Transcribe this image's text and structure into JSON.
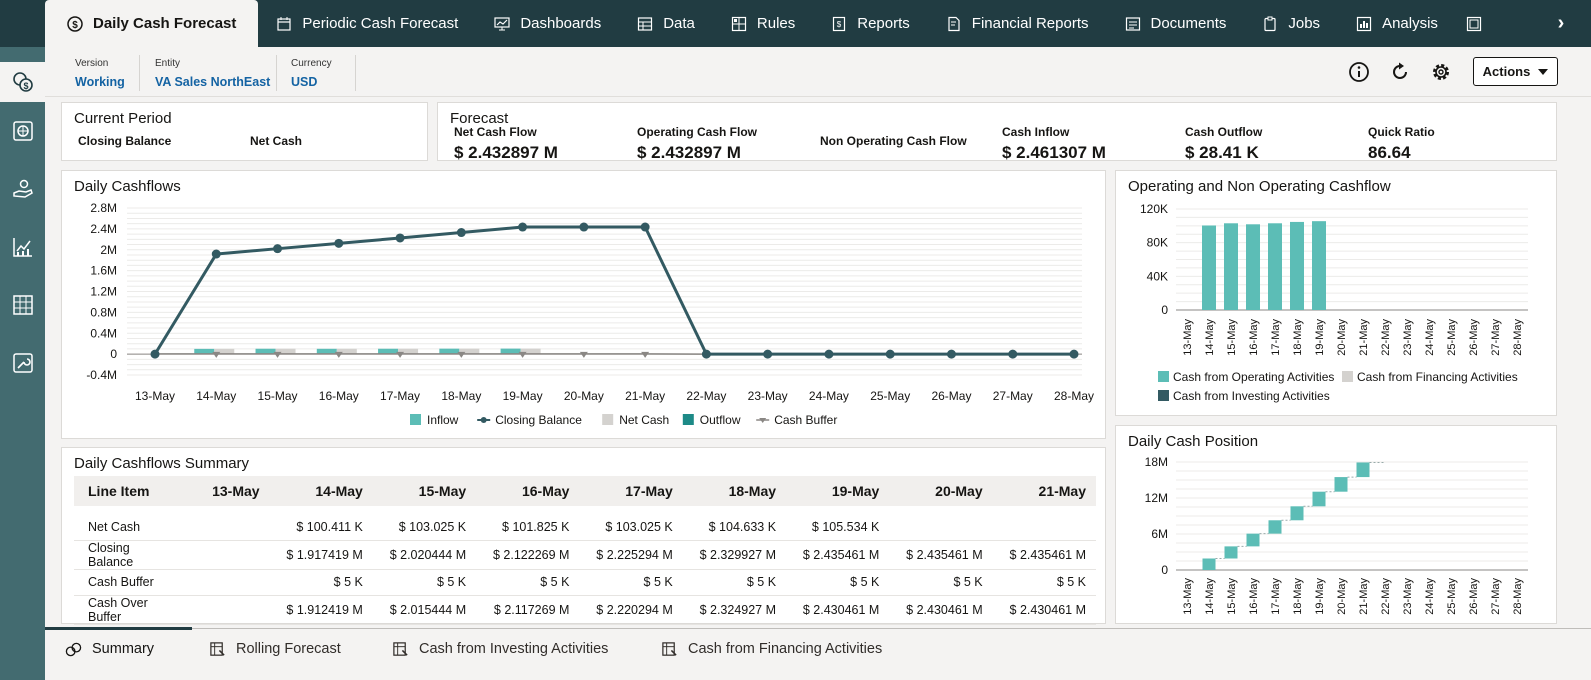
{
  "nav": {
    "tabs": [
      {
        "label": "Daily Cash Forecast",
        "icon": "dollar-circle-icon",
        "active": true
      },
      {
        "label": "Periodic Cash Forecast",
        "icon": "calendar-dollar-icon"
      },
      {
        "label": "Dashboards",
        "icon": "monitor-chart-icon"
      },
      {
        "label": "Data",
        "icon": "data-grid-icon"
      },
      {
        "label": "Rules",
        "icon": "rules-icon"
      },
      {
        "label": "Reports",
        "icon": "report-icon"
      },
      {
        "label": "Financial Reports",
        "icon": "financial-report-icon"
      },
      {
        "label": "Documents",
        "icon": "document-icon"
      },
      {
        "label": "Jobs",
        "icon": "clipboard-icon"
      },
      {
        "label": "Analysis",
        "icon": "analysis-icon"
      }
    ],
    "more_glyph": "›"
  },
  "context": {
    "version": {
      "label": "Version",
      "value": "Working"
    },
    "entity": {
      "label": "Entity",
      "value": "VA Sales NorthEast"
    },
    "currency": {
      "label": "Currency",
      "value": "USD"
    },
    "actions_label": "Actions"
  },
  "current_period": {
    "title": "Current Period",
    "closing_balance_label": "Closing Balance",
    "net_cash_label": "Net Cash"
  },
  "forecast": {
    "title": "Forecast",
    "kpis": [
      {
        "label": "Net Cash Flow",
        "value": "$ 2.432897 M"
      },
      {
        "label": "Operating Cash Flow",
        "value": "$ 2.432897 M"
      },
      {
        "label": "Non Operating Cash Flow",
        "value": ""
      },
      {
        "label": "Cash Inflow",
        "value": "$ 2.461307 M"
      },
      {
        "label": "Cash Outflow",
        "value": "$ 28.41 K"
      },
      {
        "label": "Quick Ratio",
        "value": "86.64"
      }
    ]
  },
  "chart_data": [
    {
      "type": "line",
      "title": "Daily Cashflows",
      "categories": [
        "13-May",
        "14-May",
        "15-May",
        "16-May",
        "17-May",
        "18-May",
        "19-May",
        "20-May",
        "21-May",
        "22-May",
        "23-May",
        "24-May",
        "25-May",
        "26-May",
        "27-May",
        "28-May"
      ],
      "y_ticks": [
        "2.8M",
        "2.4M",
        "2M",
        "1.6M",
        "1.2M",
        "0.8M",
        "0.4M",
        "0",
        "-0.4M"
      ],
      "ylim": [
        -0.4,
        2.8
      ],
      "unit": "M",
      "series": [
        {
          "name": "Inflow",
          "kind": "bar",
          "color": "#5cbdb6",
          "values": [
            0,
            0.1004,
            0.103,
            0.1018,
            0.103,
            0.1046,
            0.1055,
            0,
            0,
            0,
            0,
            0,
            0,
            0,
            0,
            0
          ]
        },
        {
          "name": "Closing Balance",
          "kind": "line",
          "color": "#335a62",
          "values": [
            0,
            1.917419,
            2.020444,
            2.122269,
            2.225294,
            2.329927,
            2.435461,
            2.435461,
            2.435461,
            0,
            0,
            0,
            0,
            0,
            0,
            0
          ]
        },
        {
          "name": "Net Cash",
          "kind": "bar",
          "color": "#d4d2cf",
          "values": [
            0,
            0.100411,
            0.103025,
            0.101825,
            0.103025,
            0.104633,
            0.105534,
            0,
            0,
            0,
            0,
            0,
            0,
            0,
            0,
            0
          ]
        },
        {
          "name": "Outflow",
          "kind": "bar",
          "color": "#1d8a87",
          "values": [
            0,
            0,
            0,
            0,
            0,
            0,
            0,
            0,
            0,
            0,
            0,
            0,
            0,
            0,
            0,
            0
          ]
        },
        {
          "name": "Cash Buffer",
          "kind": "line",
          "color": "#8a8784",
          "values": [
            0.005,
            0.005,
            0.005,
            0.005,
            0.005,
            0.005,
            0.005,
            0.005,
            0.005,
            0,
            0,
            0,
            0,
            0,
            0,
            0
          ]
        }
      ],
      "legend": "bottom-center"
    },
    {
      "type": "bar",
      "title": "Operating and Non Operating Cashflow",
      "categories": [
        "13-May",
        "14-May",
        "15-May",
        "16-May",
        "17-May",
        "18-May",
        "19-May",
        "20-May",
        "21-May",
        "22-May",
        "23-May",
        "24-May",
        "25-May",
        "26-May",
        "27-May",
        "28-May"
      ],
      "y_ticks": [
        "120K",
        "80K",
        "40K",
        "0"
      ],
      "ylim": [
        0,
        120000
      ],
      "series": [
        {
          "name": "Cash from Operating Activities",
          "color": "#5cbdb6",
          "values": [
            0,
            100411,
            103025,
            101825,
            103025,
            104633,
            105534,
            0,
            0,
            0,
            0,
            0,
            0,
            0,
            0,
            0
          ]
        },
        {
          "name": "Cash from Financing Activities",
          "color": "#d4d2cf",
          "values": [
            0,
            0,
            0,
            0,
            0,
            0,
            0,
            0,
            0,
            0,
            0,
            0,
            0,
            0,
            0,
            0
          ]
        },
        {
          "name": "Cash from Investing Activities",
          "color": "#335a62",
          "values": [
            0,
            0,
            0,
            0,
            0,
            0,
            0,
            0,
            0,
            0,
            0,
            0,
            0,
            0,
            0,
            0
          ]
        }
      ],
      "legend": "bottom-left"
    },
    {
      "type": "waterfall",
      "title": "Daily Cash Position",
      "categories": [
        "13-May",
        "14-May",
        "15-May",
        "16-May",
        "17-May",
        "18-May",
        "19-May",
        "20-May",
        "21-May",
        "22-May",
        "23-May",
        "24-May",
        "25-May",
        "26-May",
        "27-May",
        "28-May"
      ],
      "y_ticks": [
        "18M",
        "12M",
        "6M",
        "0"
      ],
      "ylim": [
        0,
        18
      ],
      "unit": "M",
      "series": [
        {
          "name": "Daily Cash Position",
          "color": "#5cbdb6",
          "values": [
            0,
            1.917419,
            2.020444,
            2.122269,
            2.225294,
            2.329927,
            2.435461,
            2.435461,
            2.435461,
            0,
            0,
            0,
            0,
            0,
            0,
            0
          ]
        }
      ]
    }
  ],
  "summary": {
    "title": "Daily Cashflows Summary",
    "header": [
      "Line Item",
      "13-May",
      "14-May",
      "15-May",
      "16-May",
      "17-May",
      "18-May",
      "19-May",
      "20-May",
      "21-May"
    ],
    "rows": [
      [
        "Net Cash",
        "",
        "$ 100.411 K",
        "$ 103.025 K",
        "$ 101.825 K",
        "$ 103.025 K",
        "$ 104.633 K",
        "$ 105.534 K",
        "",
        ""
      ],
      [
        "Closing Balance",
        "",
        "$ 1.917419 M",
        "$ 2.020444 M",
        "$ 2.122269 M",
        "$ 2.225294 M",
        "$ 2.329927 M",
        "$ 2.435461 M",
        "$ 2.435461 M",
        "$ 2.435461 M"
      ],
      [
        "Cash Buffer",
        "",
        "$ 5 K",
        "$ 5 K",
        "$ 5 K",
        "$ 5 K",
        "$ 5 K",
        "$ 5 K",
        "$ 5 K",
        "$ 5 K"
      ],
      [
        "Cash Over Buffer",
        "",
        "$ 1.912419 M",
        "$ 2.015444 M",
        "$ 2.117269 M",
        "$ 2.220294 M",
        "$ 2.324927 M",
        "$ 2.430461 M",
        "$ 2.430461 M",
        "$ 2.430461 M"
      ]
    ]
  },
  "bottom_tabs": [
    {
      "label": "Summary",
      "icon": "summary-icon",
      "active": true
    },
    {
      "label": "Rolling Forecast",
      "icon": "sheet-icon"
    },
    {
      "label": "Cash from Investing Activities",
      "icon": "sheet-icon"
    },
    {
      "label": "Cash from Financing Activities",
      "icon": "sheet-icon"
    }
  ],
  "colors": {
    "nav_bg": "#213c42",
    "rail_bg": "#436b70",
    "teal": "#5cbdb6",
    "dark_teal": "#335a62",
    "link_blue": "#1463a3"
  }
}
